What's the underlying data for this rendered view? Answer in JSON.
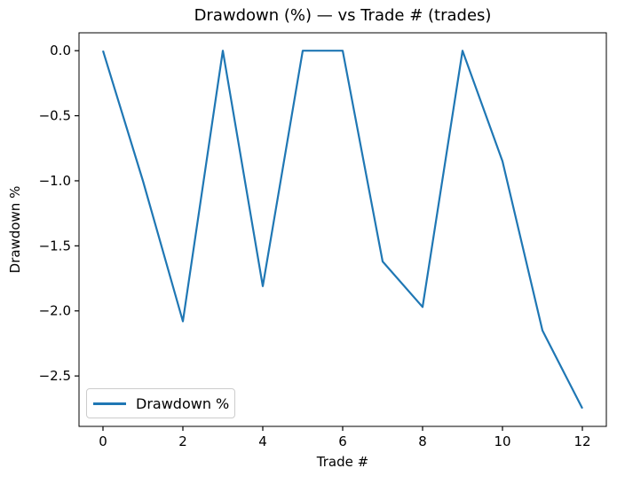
{
  "chart_data": {
    "type": "line",
    "title": "Drawdown (%) — vs Trade # (trades)",
    "xlabel": "Trade #",
    "ylabel": "Drawdown %",
    "x": [
      0,
      1,
      2,
      3,
      4,
      5,
      6,
      7,
      8,
      9,
      10,
      11,
      12
    ],
    "series": [
      {
        "name": "Drawdown %",
        "color": "#1f77b4",
        "values": [
          0.0,
          -1.0,
          -2.08,
          0.0,
          -1.81,
          0.0,
          0.0,
          -1.62,
          -1.97,
          0.0,
          -0.85,
          -2.15,
          -2.75
        ]
      }
    ],
    "xlim": [
      -0.6,
      12.6
    ],
    "ylim": [
      -2.8875,
      0.1375
    ],
    "x_ticks": {
      "values": [
        0,
        2,
        4,
        6,
        8,
        10,
        12
      ],
      "labels": [
        "0",
        "2",
        "4",
        "6",
        "8",
        "10",
        "12"
      ]
    },
    "y_ticks": {
      "values": [
        0.0,
        -0.5,
        -1.0,
        -1.5,
        -2.0,
        -2.5
      ],
      "labels": [
        "0.0",
        "−0.5",
        "−1.0",
        "−1.5",
        "−2.0",
        "−2.5"
      ]
    },
    "grid": false,
    "legend": {
      "position": "lower left",
      "entries": [
        {
          "label": "Drawdown %",
          "color": "#1f77b4"
        }
      ]
    },
    "colors": {
      "line": "#1f77b4",
      "spine": "#000000",
      "background": "#ffffff",
      "legend_border": "#cccccc"
    }
  }
}
